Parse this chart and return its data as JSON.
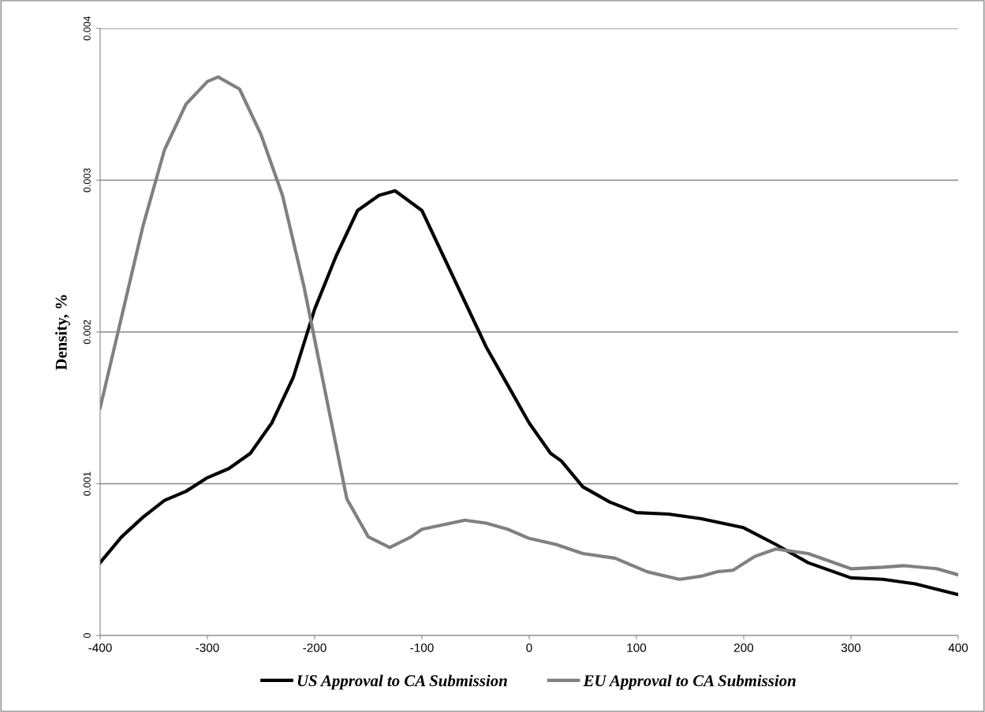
{
  "chart_data": {
    "type": "line",
    "ylabel": "Density, %",
    "x": [
      -400,
      -380,
      -360,
      -340,
      -320,
      -300,
      -280,
      -260,
      -240,
      -220,
      -200,
      -180,
      -160,
      -140,
      -125,
      -100,
      -80,
      -60,
      -40,
      -20,
      0,
      20,
      30,
      50,
      75,
      100,
      130,
      160,
      200,
      230,
      260,
      300,
      330,
      360,
      400
    ],
    "series": [
      {
        "name": "US Approval to CA Submission",
        "color": "#000000",
        "values": [
          0.00048,
          0.00065,
          0.00078,
          0.00089,
          0.00095,
          0.00104,
          0.0011,
          0.0012,
          0.0014,
          0.0017,
          0.00215,
          0.0025,
          0.0028,
          0.0029,
          0.00293,
          0.0028,
          0.0025,
          0.0022,
          0.0019,
          0.00165,
          0.0014,
          0.0012,
          0.00115,
          0.00098,
          0.00088,
          0.00081,
          0.0008,
          0.00077,
          0.00071,
          0.0006,
          0.00048,
          0.00038,
          0.00037,
          0.00034,
          0.00027
        ]
      },
      {
        "name": "EU Approval to CA Submission",
        "color": "#808080",
        "x": [
          -400,
          -380,
          -360,
          -340,
          -320,
          -300,
          -290,
          -270,
          -250,
          -230,
          -210,
          -190,
          -170,
          -150,
          -130,
          -110,
          -100,
          -80,
          -60,
          -40,
          -20,
          0,
          25,
          50,
          80,
          110,
          140,
          160,
          175,
          190,
          210,
          230,
          260,
          300,
          330,
          350,
          380,
          400
        ],
        "values": [
          0.0015,
          0.0021,
          0.0027,
          0.0032,
          0.0035,
          0.00365,
          0.00368,
          0.0036,
          0.0033,
          0.0029,
          0.0023,
          0.0016,
          0.0009,
          0.00065,
          0.00058,
          0.00065,
          0.0007,
          0.00073,
          0.00076,
          0.00074,
          0.0007,
          0.00064,
          0.0006,
          0.00054,
          0.00051,
          0.00042,
          0.00037,
          0.00039,
          0.00042,
          0.00043,
          0.00052,
          0.00057,
          0.00054,
          0.00044,
          0.00045,
          0.00046,
          0.00044,
          0.0004
        ]
      }
    ],
    "xlim": [
      -400,
      400
    ],
    "xticks": [
      -400,
      -300,
      -200,
      -100,
      0,
      100,
      200,
      300,
      400
    ],
    "ylim": [
      0,
      0.004
    ],
    "yticks": [
      0,
      0.001,
      0.002,
      0.003,
      0.004
    ],
    "grid": "y",
    "legend": "bottom",
    "marker": "none",
    "line_style": "solid"
  }
}
